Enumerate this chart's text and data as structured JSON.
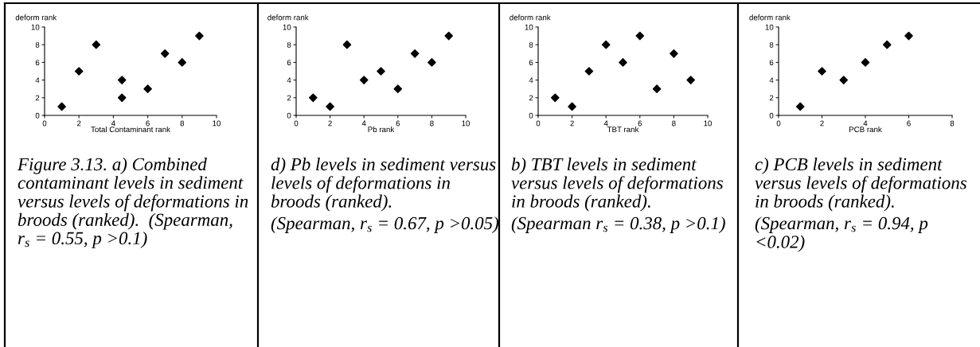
{
  "chart_data": [
    {
      "type": "scatter",
      "xlabel": "Total Contaminant rank",
      "ylabel": "deform rank",
      "x": [
        1,
        2,
        3,
        4.5,
        4.5,
        6,
        7,
        8,
        9
      ],
      "series": [
        {
          "color": "#000000",
          "values": [
            1,
            5,
            8,
            4,
            2,
            3,
            7,
            6,
            9
          ]
        }
      ],
      "xlim": [
        0,
        10
      ],
      "ylim": [
        0,
        10
      ],
      "xticks": [
        0,
        2,
        4,
        6,
        8,
        10
      ],
      "yticks": [
        0,
        2,
        4,
        6,
        8,
        10
      ],
      "marker": "diamond",
      "annotations": [
        "Figure 3.13. a) Combined contaminant levels in sediment versus levels of deformations in broods (ranked).  (Spearman, r$_{s}$ = 0.55, p >0.1)"
      ]
    },
    {
      "type": "scatter",
      "xlabel": "Pb rank",
      "ylabel": "deform rank",
      "x": [
        1,
        2,
        3,
        4,
        5,
        6,
        7,
        8,
        9
      ],
      "series": [
        {
          "color": "#000000",
          "values": [
            2,
            1,
            8,
            4,
            5,
            3,
            7,
            6,
            9
          ]
        }
      ],
      "xlim": [
        0,
        10
      ],
      "ylim": [
        0,
        10
      ],
      "xticks": [
        0,
        2,
        4,
        6,
        8,
        10
      ],
      "yticks": [
        0,
        2,
        4,
        6,
        8,
        10
      ],
      "marker": "diamond",
      "annotations": [
        "d) Pb levels in sediment versus levels of deformations in broods (ranked).",
        "(Spearman, r$_{s}$ = 0.67, p >0.05)"
      ]
    },
    {
      "type": "scatter",
      "xlabel": "TBT rank",
      "ylabel": "deform rank",
      "x": [
        1,
        2,
        3,
        4,
        5,
        6,
        7,
        8,
        9
      ],
      "series": [
        {
          "color": "#000000",
          "values": [
            2,
            1,
            5,
            8,
            6,
            9,
            3,
            7,
            4
          ]
        }
      ],
      "xlim": [
        0,
        10
      ],
      "ylim": [
        0,
        10
      ],
      "xticks": [
        0,
        2,
        4,
        6,
        8,
        10
      ],
      "yticks": [
        0,
        2,
        4,
        6,
        8,
        10
      ],
      "marker": "diamond",
      "annotations": [
        "b) TBT levels in sediment versus levels of deformations in broods (ranked).",
        "(Spearman r$_{s}$ = 0.38, p >0.1)"
      ]
    },
    {
      "type": "scatter",
      "xlabel": "PCB rank",
      "ylabel": "deform rank",
      "x": [
        1,
        2,
        3,
        4,
        5,
        6
      ],
      "series": [
        {
          "color": "#000000",
          "values": [
            1,
            5,
            4,
            6,
            8,
            9
          ]
        }
      ],
      "xlim": [
        0,
        8
      ],
      "ylim": [
        0,
        10
      ],
      "xticks": [
        0,
        2,
        4,
        6,
        8
      ],
      "yticks": [
        0,
        2,
        4,
        6,
        8,
        10
      ],
      "marker": "diamond",
      "annotations": [
        "c) PCB levels in sediment versus levels of deformations in broods (ranked).",
        "(Spearman, r$_{s}$ = 0.94, p <0.02)"
      ]
    }
  ]
}
